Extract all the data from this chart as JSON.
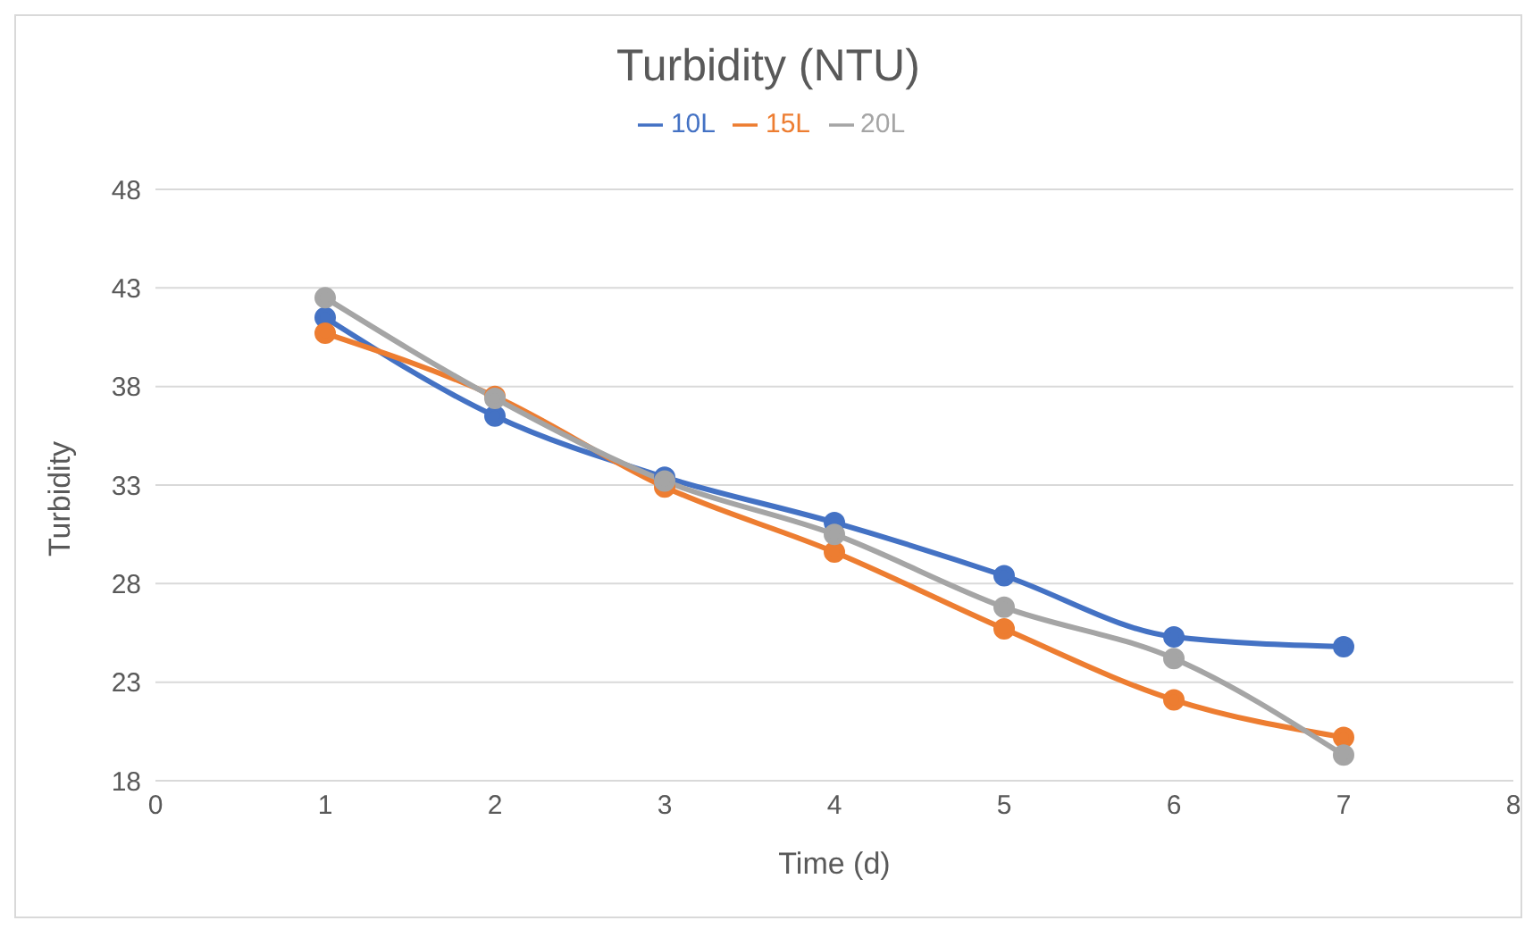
{
  "chart_data": {
    "type": "line",
    "title": "Turbidity (NTU)",
    "xlabel": "Time (d)",
    "ylabel": "Turbidity",
    "x": [
      1,
      2,
      3,
      4,
      5,
      6,
      7
    ],
    "series": [
      {
        "name": "10L",
        "color": "#4472c4",
        "values": [
          41.5,
          36.5,
          33.4,
          31.1,
          28.4,
          25.3,
          24.8
        ]
      },
      {
        "name": "15L",
        "color": "#ed7d31",
        "values": [
          40.7,
          37.5,
          32.9,
          29.6,
          25.7,
          22.1,
          20.2
        ]
      },
      {
        "name": "20L",
        "color": "#a5a5a5",
        "values": [
          42.5,
          37.4,
          33.2,
          30.5,
          26.8,
          24.2,
          19.3
        ]
      }
    ],
    "xlim": [
      0,
      8
    ],
    "xticks": [
      0,
      1,
      2,
      3,
      4,
      5,
      6,
      7,
      8
    ],
    "ylim": [
      18,
      48
    ],
    "yticks": [
      18,
      23,
      28,
      33,
      38,
      43,
      48
    ],
    "grid": "y",
    "legend": "top",
    "marker": "circle",
    "line_style": "solid"
  }
}
